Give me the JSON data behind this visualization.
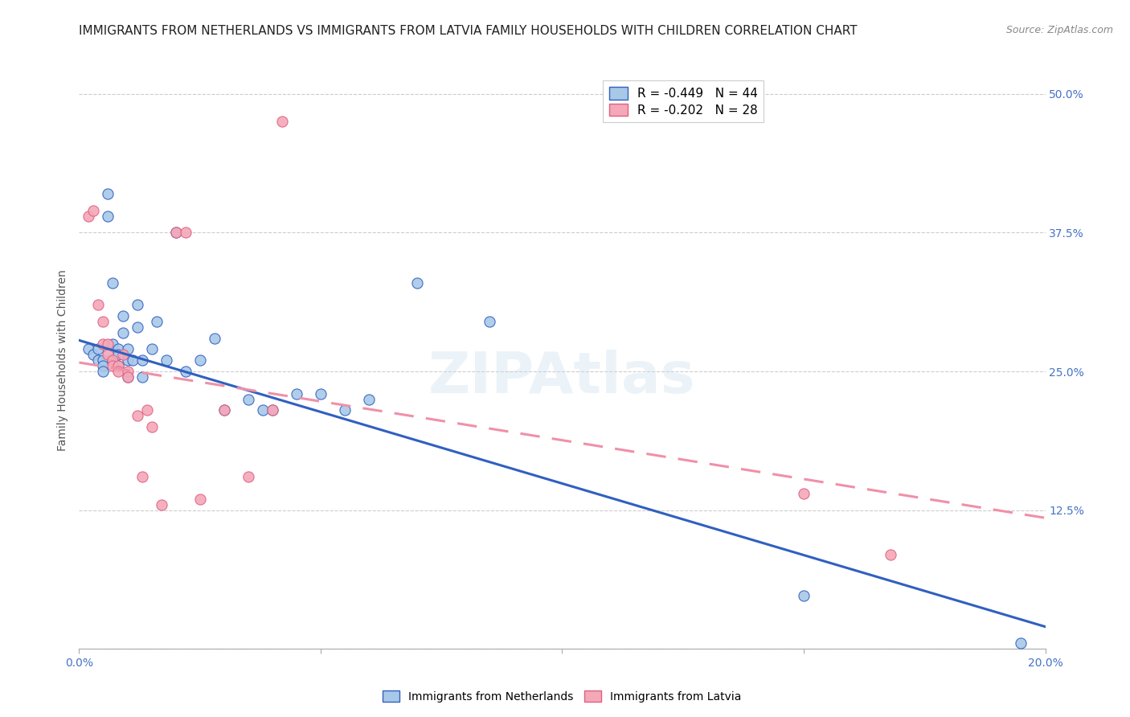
{
  "title": "IMMIGRANTS FROM NETHERLANDS VS IMMIGRANTS FROM LATVIA FAMILY HOUSEHOLDS WITH CHILDREN CORRELATION CHART",
  "source": "Source: ZipAtlas.com",
  "ylabel": "Family Households with Children",
  "xlim": [
    0.0,
    0.2
  ],
  "ylim": [
    0.0,
    0.52
  ],
  "netherlands_R": -0.449,
  "netherlands_N": 44,
  "latvia_R": -0.202,
  "latvia_N": 28,
  "netherlands_color": "#a8c8e8",
  "latvia_color": "#f4a8b8",
  "netherlands_line_color": "#3060c0",
  "latvia_edge_color": "#e06080",
  "latvia_line_color": "#f090a8",
  "netherlands_x": [
    0.002,
    0.003,
    0.004,
    0.004,
    0.005,
    0.005,
    0.005,
    0.006,
    0.006,
    0.007,
    0.007,
    0.007,
    0.008,
    0.008,
    0.008,
    0.009,
    0.009,
    0.01,
    0.01,
    0.01,
    0.011,
    0.012,
    0.012,
    0.013,
    0.013,
    0.015,
    0.016,
    0.018,
    0.02,
    0.022,
    0.025,
    0.028,
    0.03,
    0.035,
    0.038,
    0.04,
    0.045,
    0.05,
    0.055,
    0.06,
    0.07,
    0.085,
    0.15,
    0.195
  ],
  "netherlands_y": [
    0.27,
    0.265,
    0.27,
    0.26,
    0.26,
    0.255,
    0.25,
    0.41,
    0.39,
    0.33,
    0.275,
    0.26,
    0.27,
    0.265,
    0.255,
    0.3,
    0.285,
    0.27,
    0.26,
    0.245,
    0.26,
    0.31,
    0.29,
    0.26,
    0.245,
    0.27,
    0.295,
    0.26,
    0.375,
    0.25,
    0.26,
    0.28,
    0.215,
    0.225,
    0.215,
    0.215,
    0.23,
    0.23,
    0.215,
    0.225,
    0.33,
    0.295,
    0.048,
    0.005
  ],
  "latvia_x": [
    0.002,
    0.003,
    0.004,
    0.005,
    0.005,
    0.006,
    0.006,
    0.007,
    0.007,
    0.008,
    0.008,
    0.009,
    0.01,
    0.01,
    0.012,
    0.013,
    0.014,
    0.015,
    0.017,
    0.02,
    0.022,
    0.025,
    0.03,
    0.035,
    0.04,
    0.042,
    0.15,
    0.168
  ],
  "latvia_y": [
    0.39,
    0.395,
    0.31,
    0.295,
    0.275,
    0.275,
    0.265,
    0.26,
    0.255,
    0.255,
    0.25,
    0.265,
    0.25,
    0.245,
    0.21,
    0.155,
    0.215,
    0.2,
    0.13,
    0.375,
    0.375,
    0.135,
    0.215,
    0.155,
    0.215,
    0.475,
    0.14,
    0.085
  ],
  "nl_line_x0": 0.0,
  "nl_line_x1": 0.2,
  "nl_line_y0": 0.278,
  "nl_line_y1": 0.02,
  "lv_line_x0": 0.0,
  "lv_line_x1": 0.2,
  "lv_line_y0": 0.258,
  "lv_line_y1": 0.118,
  "background_color": "#ffffff",
  "grid_color": "#cccccc",
  "title_fontsize": 11,
  "axis_label_fontsize": 10,
  "tick_fontsize": 10,
  "legend_fontsize": 11
}
